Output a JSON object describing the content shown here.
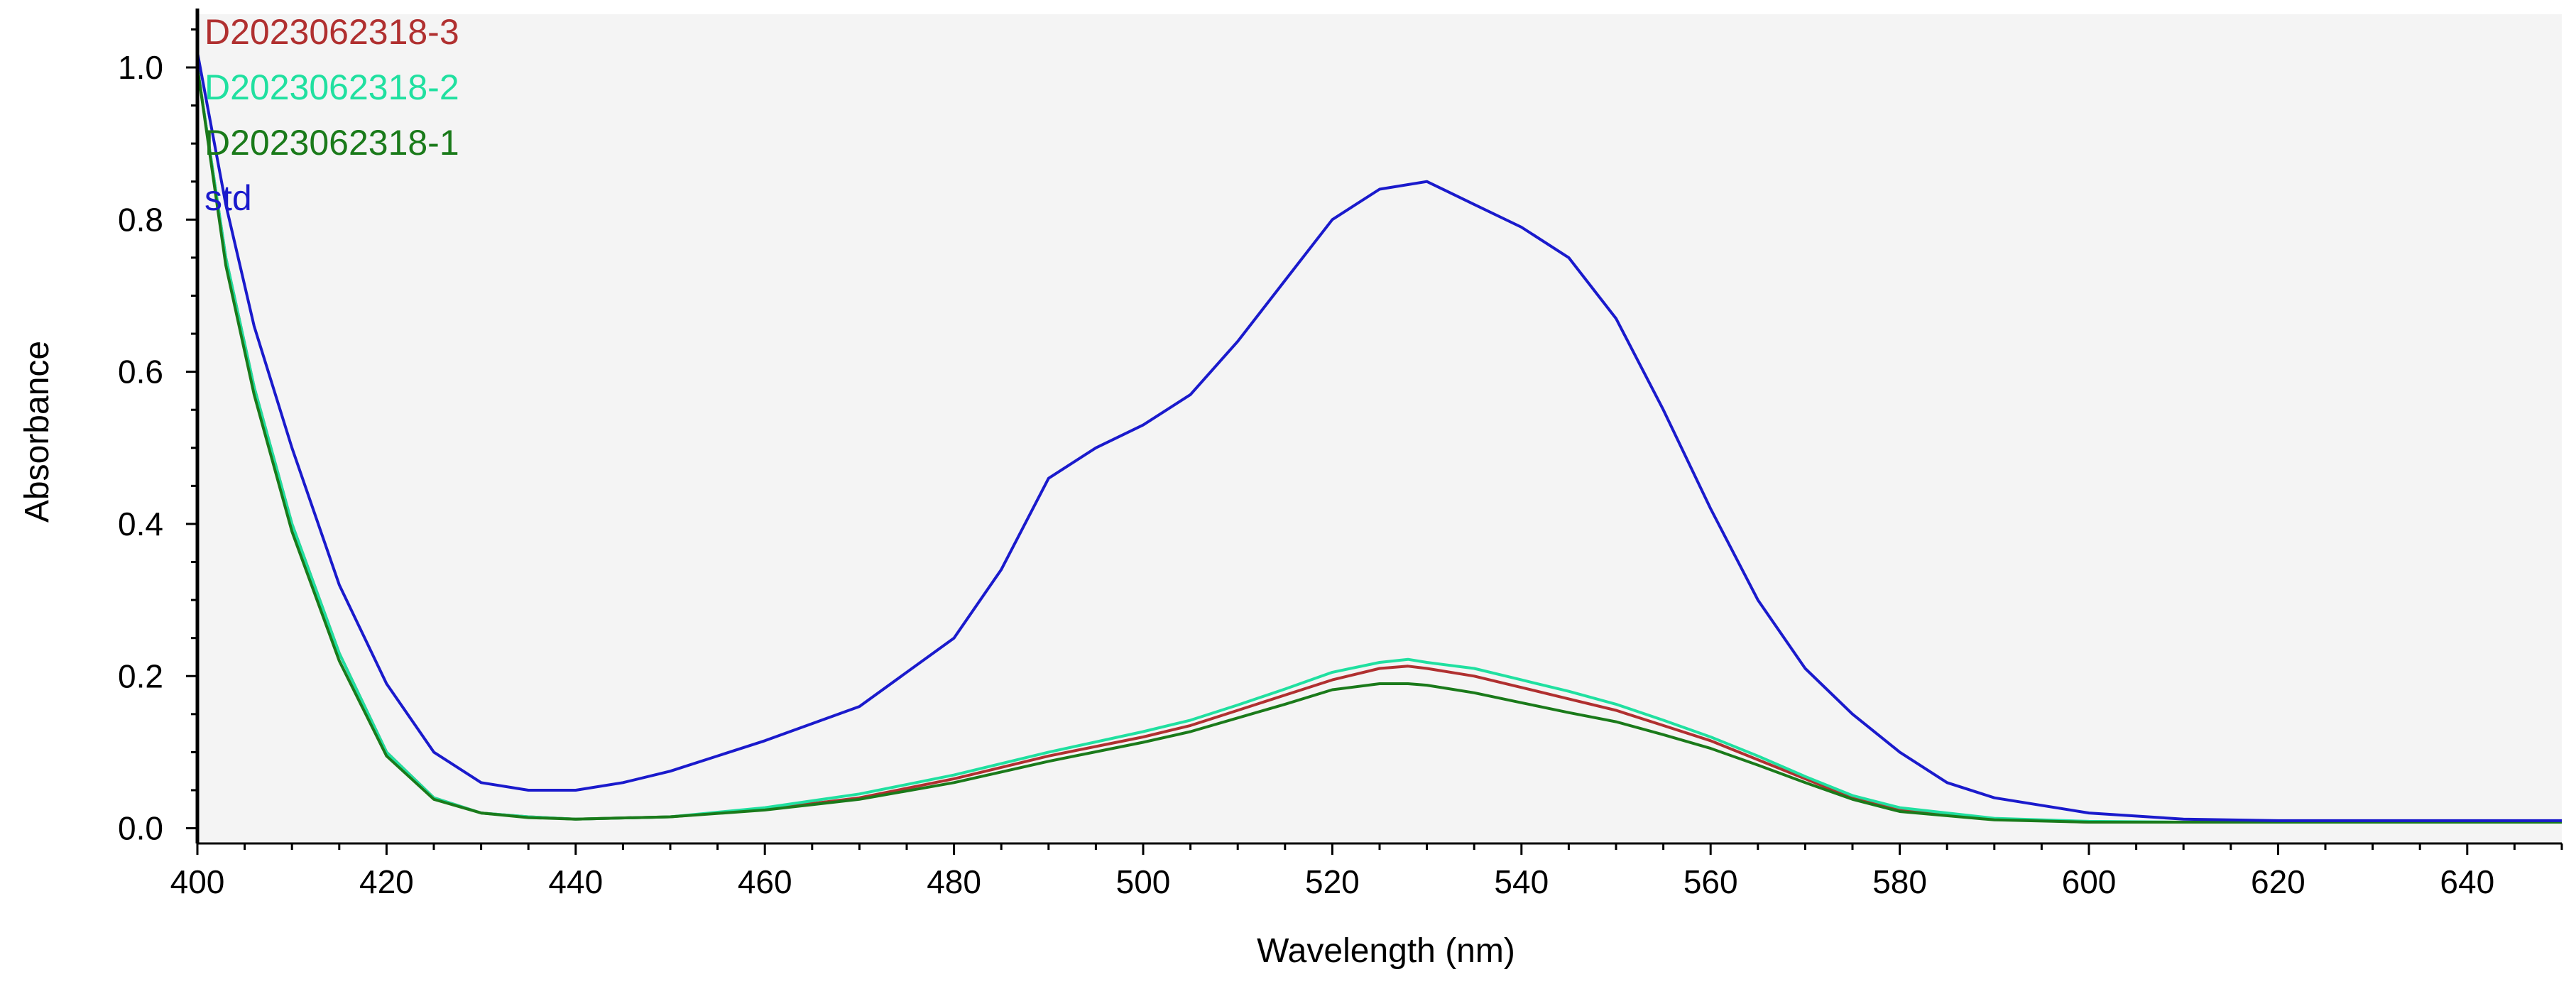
{
  "chart_data": {
    "type": "line",
    "title": "",
    "xlabel": "Wavelength (nm)",
    "ylabel": "Absorbance",
    "xlim": [
      400,
      650
    ],
    "ylim": [
      -0.02,
      1.07
    ],
    "x_ticks": [
      400,
      420,
      440,
      460,
      480,
      500,
      520,
      540,
      560,
      580,
      600,
      620,
      640
    ],
    "y_ticks": [
      0.0,
      0.2,
      0.4,
      0.6,
      0.8,
      1.0
    ],
    "y_tick_labels": [
      "0.0",
      "0.2",
      "0.4",
      "0.6",
      "0.8",
      "1.0"
    ],
    "grid": false,
    "legend_position": "top-left",
    "background_color": "#f4f4f4",
    "series": [
      {
        "name": "D2023062318-3",
        "color": "#b03030",
        "x": [
          400,
          403,
          406,
          410,
          415,
          420,
          425,
          430,
          435,
          440,
          450,
          460,
          470,
          480,
          490,
          500,
          505,
          510,
          515,
          520,
          525,
          528,
          530,
          535,
          540,
          545,
          550,
          555,
          560,
          565,
          570,
          575,
          580,
          590,
          600,
          610,
          620,
          630,
          640,
          650
        ],
        "y": [
          1.0,
          0.75,
          0.58,
          0.4,
          0.23,
          0.1,
          0.04,
          0.02,
          0.015,
          0.012,
          0.015,
          0.025,
          0.04,
          0.065,
          0.095,
          0.12,
          0.135,
          0.155,
          0.175,
          0.195,
          0.21,
          0.213,
          0.21,
          0.2,
          0.185,
          0.17,
          0.155,
          0.135,
          0.115,
          0.09,
          0.065,
          0.04,
          0.025,
          0.012,
          0.008,
          0.008,
          0.008,
          0.008,
          0.008,
          0.008
        ]
      },
      {
        "name": "D2023062318-2",
        "color": "#20e0a0",
        "x": [
          400,
          403,
          406,
          410,
          415,
          420,
          425,
          430,
          435,
          440,
          450,
          460,
          470,
          480,
          490,
          500,
          505,
          510,
          515,
          520,
          525,
          528,
          530,
          535,
          540,
          545,
          550,
          555,
          560,
          565,
          570,
          575,
          580,
          590,
          600,
          610,
          620,
          630,
          640,
          650
        ],
        "y": [
          1.0,
          0.75,
          0.58,
          0.4,
          0.23,
          0.1,
          0.04,
          0.02,
          0.015,
          0.012,
          0.015,
          0.027,
          0.045,
          0.07,
          0.1,
          0.127,
          0.142,
          0.162,
          0.183,
          0.205,
          0.218,
          0.222,
          0.218,
          0.21,
          0.195,
          0.18,
          0.163,
          0.142,
          0.12,
          0.095,
          0.068,
          0.043,
          0.027,
          0.013,
          0.009,
          0.008,
          0.008,
          0.008,
          0.008,
          0.008
        ]
      },
      {
        "name": "D2023062318-1",
        "color": "#1a7a1a",
        "x": [
          400,
          403,
          406,
          410,
          415,
          420,
          425,
          430,
          435,
          440,
          450,
          460,
          470,
          480,
          490,
          500,
          505,
          510,
          515,
          520,
          525,
          528,
          530,
          535,
          540,
          545,
          550,
          555,
          560,
          565,
          570,
          575,
          580,
          590,
          600,
          610,
          620,
          630,
          640,
          650
        ],
        "y": [
          1.0,
          0.74,
          0.57,
          0.39,
          0.22,
          0.095,
          0.038,
          0.02,
          0.014,
          0.012,
          0.015,
          0.024,
          0.038,
          0.06,
          0.088,
          0.113,
          0.127,
          0.145,
          0.163,
          0.182,
          0.19,
          0.19,
          0.188,
          0.178,
          0.165,
          0.152,
          0.14,
          0.123,
          0.105,
          0.083,
          0.06,
          0.038,
          0.022,
          0.011,
          0.008,
          0.008,
          0.008,
          0.008,
          0.008,
          0.008
        ]
      },
      {
        "name": "std",
        "color": "#1a1acc",
        "x": [
          400,
          403,
          406,
          410,
          415,
          420,
          425,
          430,
          435,
          440,
          445,
          450,
          460,
          470,
          480,
          485,
          490,
          495,
          500,
          505,
          510,
          515,
          520,
          525,
          530,
          535,
          540,
          545,
          550,
          555,
          560,
          565,
          570,
          575,
          580,
          585,
          590,
          600,
          610,
          620,
          630,
          640,
          650
        ],
        "y": [
          1.02,
          0.82,
          0.66,
          0.5,
          0.32,
          0.19,
          0.1,
          0.06,
          0.05,
          0.05,
          0.06,
          0.075,
          0.115,
          0.16,
          0.25,
          0.34,
          0.46,
          0.5,
          0.53,
          0.57,
          0.64,
          0.72,
          0.8,
          0.84,
          0.85,
          0.82,
          0.79,
          0.75,
          0.67,
          0.55,
          0.42,
          0.3,
          0.21,
          0.15,
          0.1,
          0.06,
          0.04,
          0.02,
          0.012,
          0.01,
          0.01,
          0.01,
          0.01
        ]
      }
    ]
  }
}
